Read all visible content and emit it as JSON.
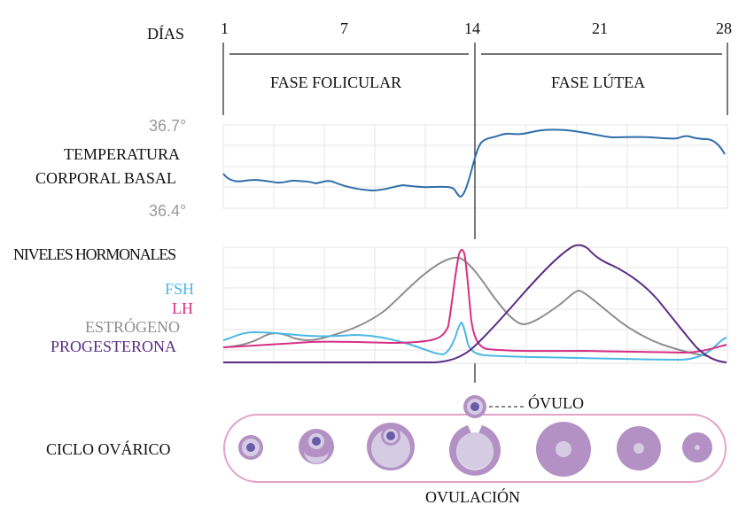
{
  "header": {
    "days_label": "DÍAS",
    "days": [
      "1",
      "7",
      "14",
      "21",
      "28"
    ]
  },
  "phases": {
    "follicular": "FASE FOLICULAR",
    "luteal": "FASE LÚTEA"
  },
  "temperature": {
    "label_line1": "TEMPERATURA",
    "label_line2": "CORPORAL BASAL",
    "max_label": "36.7°",
    "min_label": "36.4°"
  },
  "hormones": {
    "title": "NIVELES HORMONALES",
    "legend": [
      {
        "name": "FSH",
        "color": "#4bb8e6"
      },
      {
        "name": "LH",
        "color": "#d62f86"
      },
      {
        "name": "ESTRÓGENO",
        "color": "#8e8e8e"
      },
      {
        "name": "PROGESTERONA",
        "color": "#5a2d82"
      }
    ]
  },
  "ovary": {
    "label": "CICLO OVÁRICO",
    "ovule_label": "ÓVULO",
    "ovulation_label": "OVULACIÓN"
  },
  "colors": {
    "temperature_line": "#2f6fa9",
    "grid": "#e6e6e6",
    "follicle": "#b391c4",
    "follicle_inner": "#d5cce4",
    "follicle_nucleus": "#6a5ba8",
    "ovary_outline": "#e3a2c7"
  }
}
